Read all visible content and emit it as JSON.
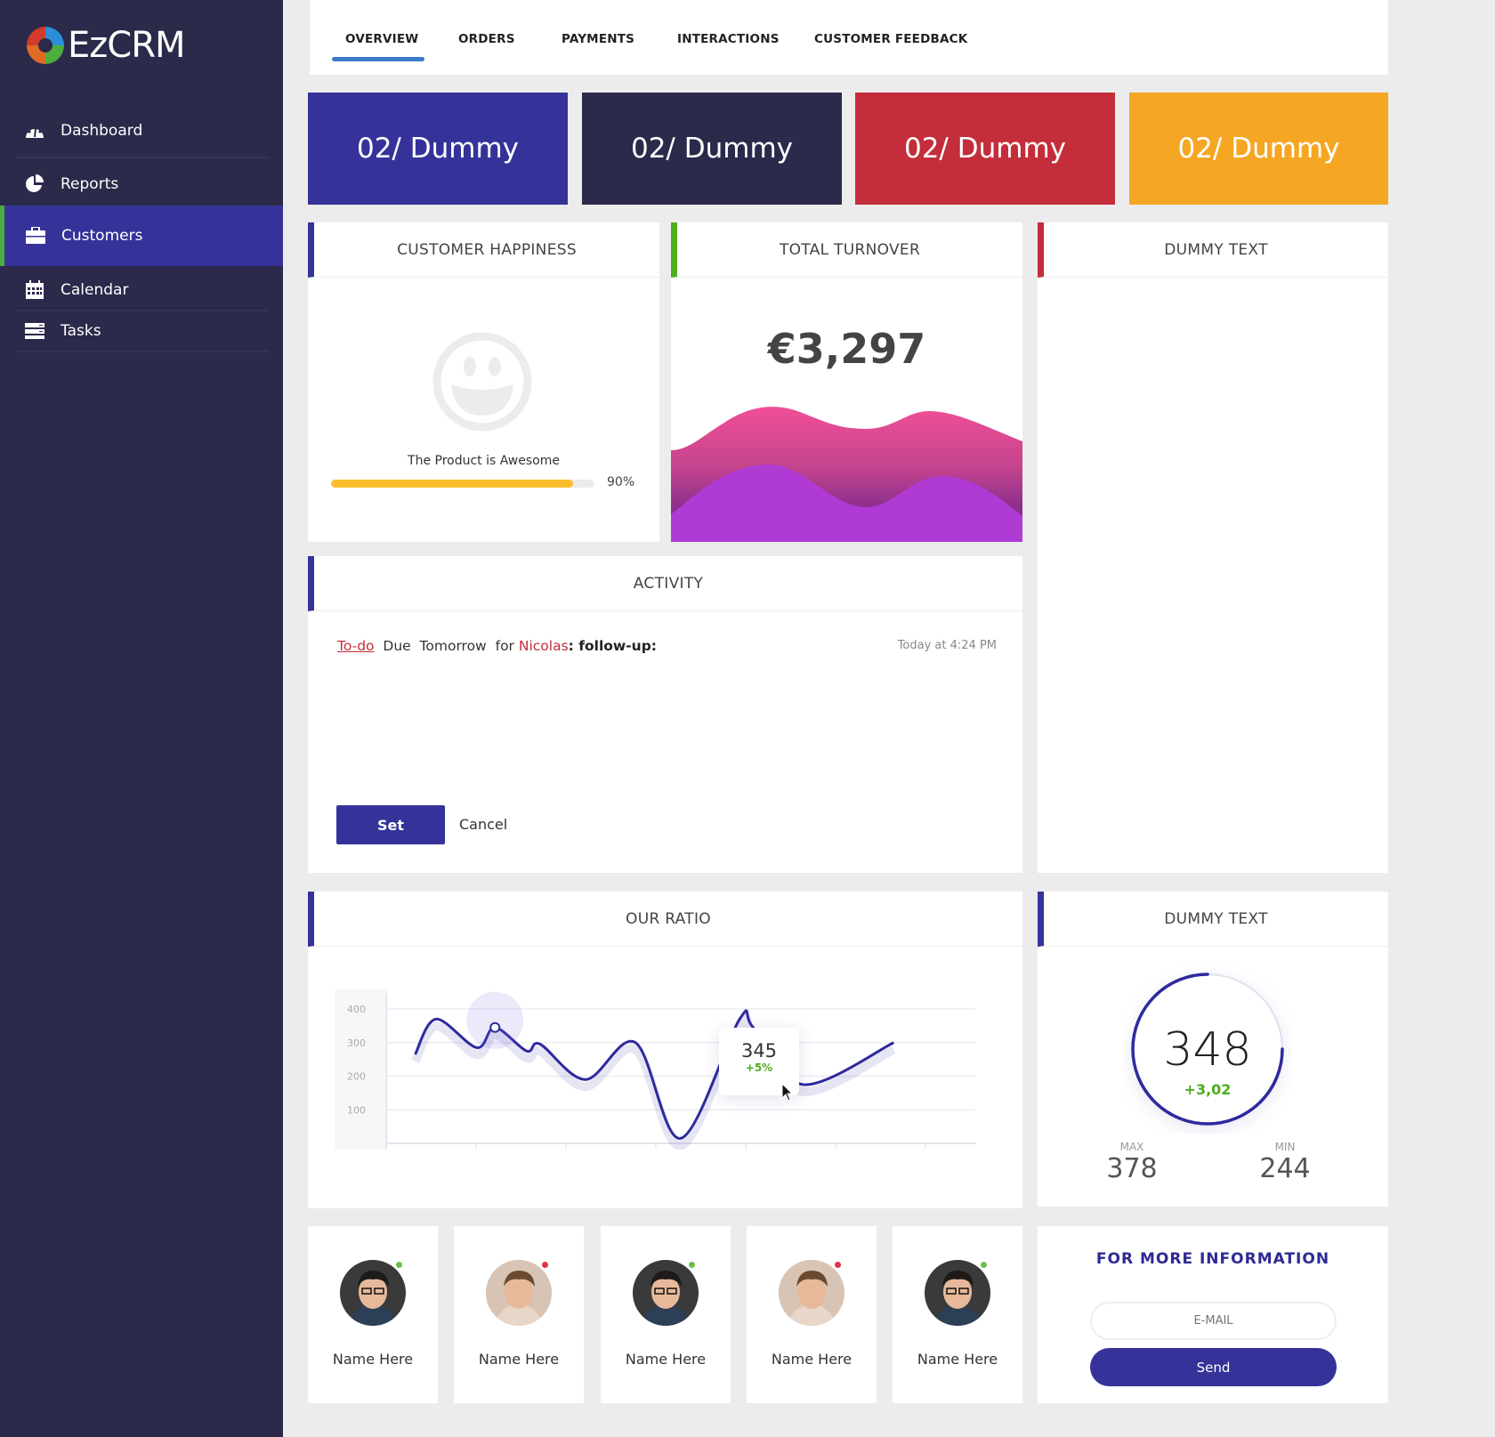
{
  "app": {
    "logo_text": "EzCRM"
  },
  "sidebar": {
    "items": [
      {
        "label": "Dashboard",
        "icon": "dashboard-gauge-icon"
      },
      {
        "label": "Reports",
        "icon": "pie-chart-icon"
      },
      {
        "label": "Customers",
        "icon": "briefcase-icon",
        "active": true
      },
      {
        "label": "Calendar",
        "icon": "calendar-icon"
      },
      {
        "label": "Tasks",
        "icon": "tasks-list-icon"
      }
    ]
  },
  "tabs": [
    {
      "label": "OVERVIEW",
      "active": true
    },
    {
      "label": "ORDERS"
    },
    {
      "label": "PAYMENTS"
    },
    {
      "label": "INTERACTIONS"
    },
    {
      "label": "CUSTOMER FEEDBACK"
    }
  ],
  "tiles": [
    {
      "label": "02/ Dummy",
      "color": "#35339a"
    },
    {
      "label": "02/ Dummy",
      "color": "#2b2a4a"
    },
    {
      "label": "02/ Dummy",
      "color": "#c42d3a"
    },
    {
      "label": "02/ Dummy",
      "color": "#f5a623"
    }
  ],
  "happiness": {
    "title": "CUSTOMER HAPPINESS",
    "caption": "The Product is Awesome",
    "percent_label": "90%",
    "progress": 90,
    "bar_color": "#fbbf2d"
  },
  "turnover": {
    "title": "TOTAL TURNOVER",
    "value": "€3,297"
  },
  "dummy_text_1": {
    "title": "DUMMY TEXT"
  },
  "activity": {
    "title": "ACTIVITY",
    "type_link": "To-do",
    "due": "Due",
    "when": "Tomorrow",
    "for": "for",
    "person": "Nicolas",
    "task": ": follow-up:",
    "timestamp": "Today at 4:24 PM",
    "set_label": "Set",
    "cancel_label": "Cancel"
  },
  "ratio": {
    "title": "OUR RATIO"
  },
  "chart_data": {
    "type": "line",
    "yticks": [
      100,
      200,
      300,
      400
    ],
    "ylim": [
      0,
      400
    ],
    "xlim": [
      0,
      6.5
    ],
    "grid": true,
    "x": [
      0.32,
      0.55,
      1.0,
      1.2,
      1.55,
      1.7,
      2.2,
      2.75,
      3.25,
      3.9,
      4.05,
      4.6,
      5.6
    ],
    "values": [
      265,
      370,
      285,
      345,
      275,
      295,
      190,
      300,
      15,
      370,
      345,
      175,
      300
    ],
    "tooltip": {
      "value": "345",
      "change": "+5%"
    },
    "line_color": "#2e2a9e"
  },
  "gauge": {
    "title": "DUMMY TEXT",
    "value": "348",
    "change": "+3,02",
    "max_label": "MAX",
    "max": "378",
    "min_label": "MIN",
    "min": "244",
    "fill": 0.75
  },
  "people": [
    {
      "name": "Name Here",
      "status": "online"
    },
    {
      "name": "Name Here",
      "status": "busy"
    },
    {
      "name": "Name Here",
      "status": "online"
    },
    {
      "name": "Name Here",
      "status": "busy"
    },
    {
      "name": "Name Here",
      "status": "online"
    }
  ],
  "info": {
    "title": "FOR MORE INFORMATION",
    "email_placeholder": "E-MAIL",
    "send_label": "Send"
  }
}
